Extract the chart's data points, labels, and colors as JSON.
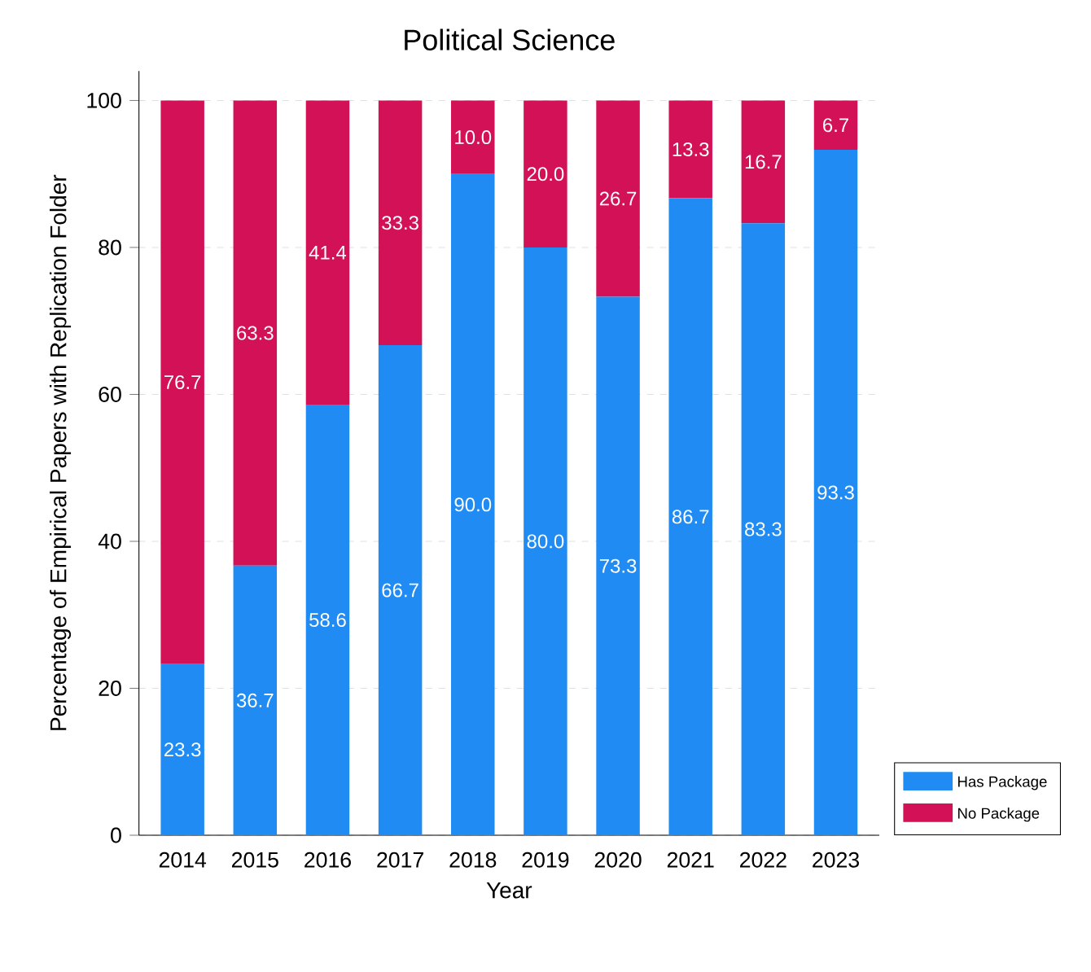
{
  "chart_data": {
    "type": "bar",
    "stacked": true,
    "title": "Political Science",
    "xlabel": "Year",
    "ylabel": "Percentage of Empirical Papers with Replication Folder",
    "categories": [
      "2014",
      "2015",
      "2016",
      "2017",
      "2018",
      "2019",
      "2020",
      "2021",
      "2022",
      "2023"
    ],
    "series": [
      {
        "name": "Has Package",
        "color": "#1f8bf3",
        "values": [
          23.3,
          36.7,
          58.6,
          66.7,
          90.0,
          80.0,
          73.3,
          86.7,
          83.3,
          93.3
        ],
        "value_labels": [
          "23.3",
          "36.7",
          "58.6",
          "66.7",
          "90.0",
          "80.0",
          "73.3",
          "86.7",
          "83.3",
          "93.3"
        ]
      },
      {
        "name": "No Package",
        "color": "#d21156",
        "values": [
          76.7,
          63.3,
          41.4,
          33.3,
          10.0,
          20.0,
          26.7,
          13.3,
          16.7,
          6.7
        ],
        "value_labels": [
          "76.7",
          "63.3",
          "41.4",
          "33.3",
          "10.0",
          "20.0",
          "26.7",
          "13.3",
          "16.7",
          "6.7"
        ]
      }
    ],
    "ylim": [
      0,
      104
    ],
    "yticks": [
      0,
      20,
      40,
      60,
      80,
      100
    ],
    "grid": "y",
    "legend": "bottom right"
  }
}
